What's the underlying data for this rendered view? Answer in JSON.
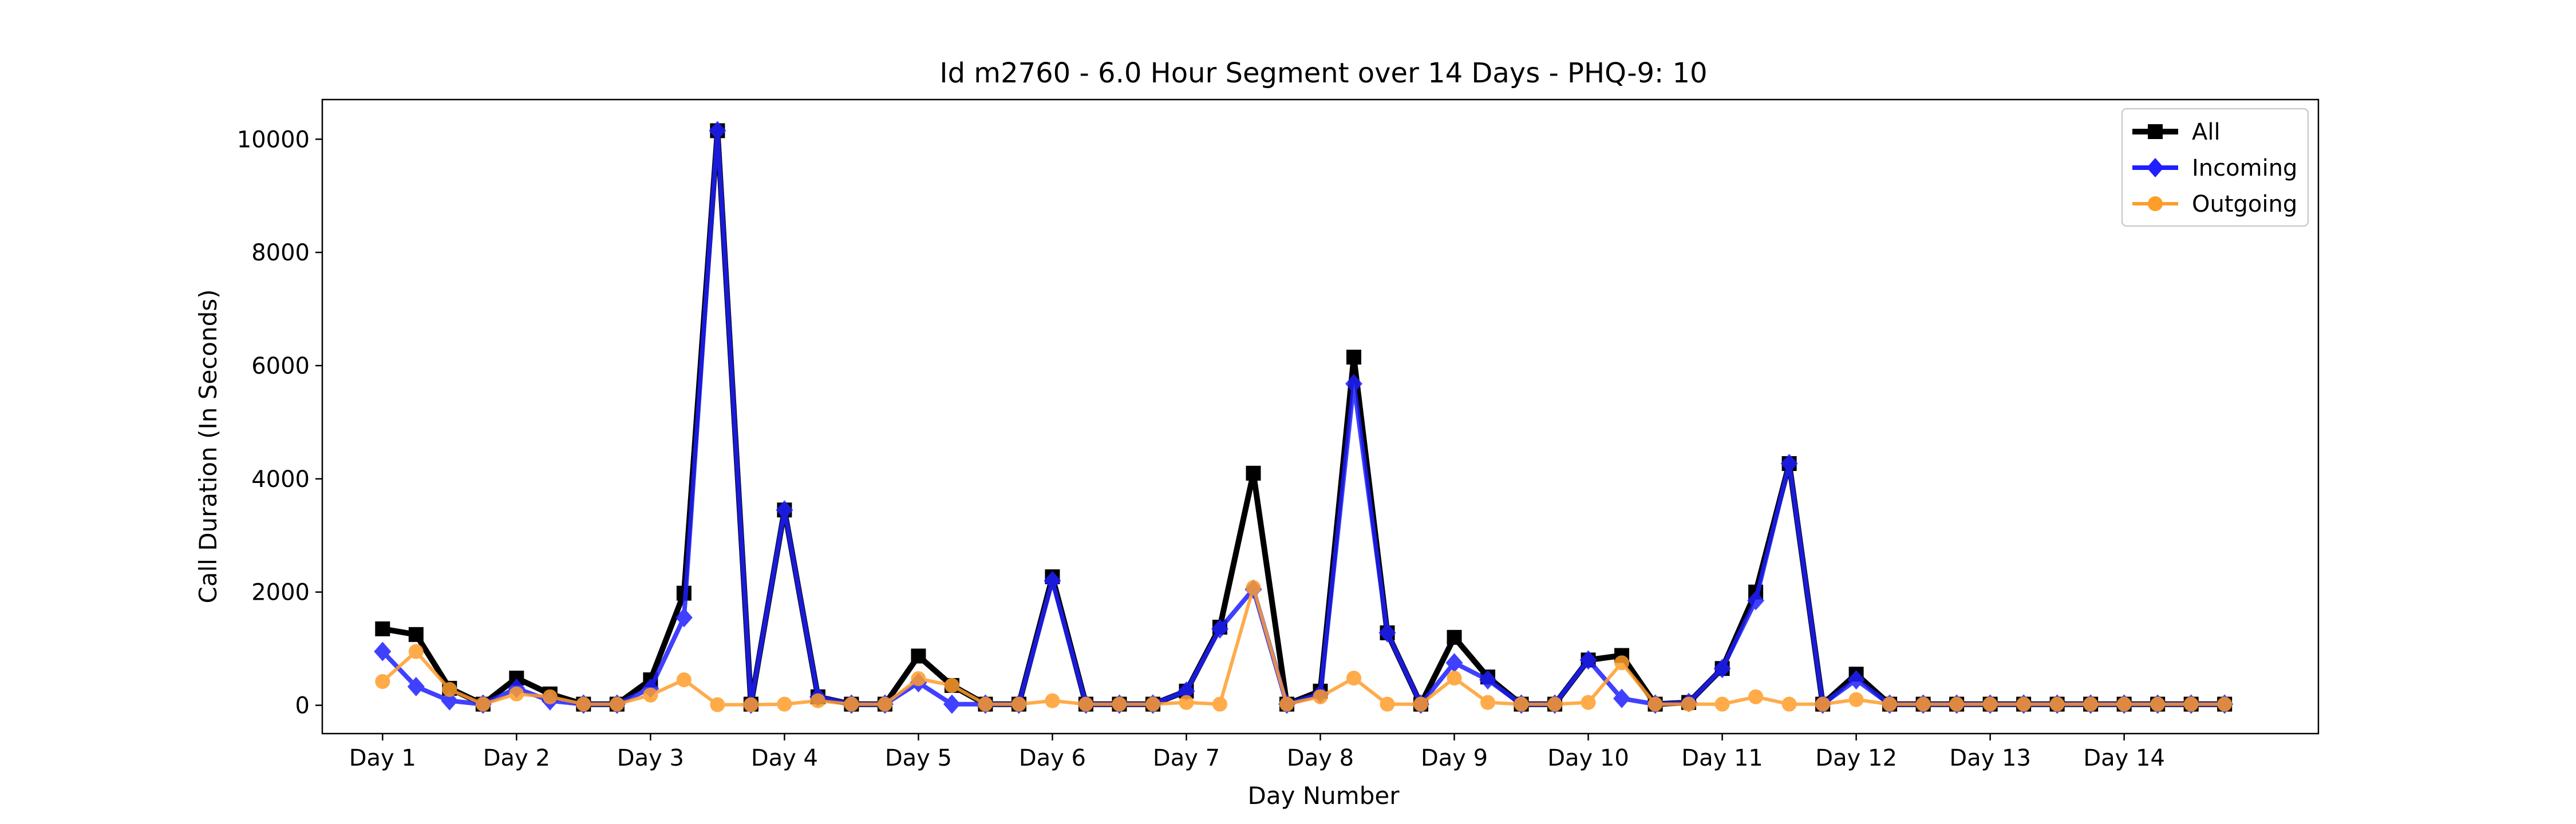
{
  "chart_data": {
    "type": "line",
    "title": "Id m2760 - 6.0 Hour Segment over 14 Days - PHQ-9: 10",
    "xlabel": "Day Number",
    "ylabel": "Call Duration (In Seconds)",
    "x_ticks": [
      "Day 1",
      "Day 2",
      "Day 3",
      "Day 4",
      "Day 5",
      "Day 6",
      "Day 7",
      "Day 8",
      "Day 9",
      "Day 10",
      "Day 11",
      "Day 12",
      "Day 13",
      "Day 14"
    ],
    "y_ticks": [
      0,
      2000,
      4000,
      6000,
      8000,
      10000
    ],
    "ylim": [
      -500,
      10700
    ],
    "xlim": [
      -1.8,
      57.8
    ],
    "legend_position": "top-right",
    "grid": false,
    "x": [
      0,
      1,
      2,
      3,
      4,
      5,
      6,
      7,
      8,
      9,
      10,
      11,
      12,
      13,
      14,
      15,
      16,
      17,
      18,
      19,
      20,
      21,
      22,
      23,
      24,
      25,
      26,
      27,
      28,
      29,
      30,
      31,
      32,
      33,
      34,
      35,
      36,
      37,
      38,
      39,
      40,
      41,
      42,
      43,
      44,
      45,
      46,
      47,
      48,
      49,
      50,
      51,
      52,
      53,
      54,
      55
    ],
    "series": [
      {
        "name": "All",
        "color": "#000000",
        "marker": "square",
        "values": [
          1350,
          1250,
          300,
          20,
          480,
          200,
          20,
          20,
          450,
          1980,
          10150,
          20,
          3450,
          150,
          20,
          20,
          870,
          350,
          20,
          20,
          2270,
          20,
          20,
          20,
          250,
          1380,
          4100,
          20,
          250,
          6150,
          1280,
          20,
          1200,
          500,
          20,
          20,
          800,
          880,
          20,
          50,
          650,
          2000,
          4270,
          20,
          550,
          20,
          20,
          20,
          20,
          20,
          20,
          20,
          20,
          20,
          20,
          20
        ]
      },
      {
        "name": "Incoming",
        "color": "#1f1fff",
        "marker": "diamond",
        "values": [
          950,
          330,
          80,
          20,
          300,
          80,
          20,
          20,
          300,
          1550,
          10150,
          20,
          3450,
          150,
          20,
          20,
          400,
          20,
          20,
          20,
          2200,
          20,
          20,
          20,
          250,
          1350,
          2050,
          20,
          200,
          5680,
          1280,
          20,
          750,
          450,
          20,
          20,
          800,
          120,
          20,
          50,
          650,
          1850,
          4270,
          20,
          450,
          20,
          20,
          20,
          20,
          20,
          20,
          20,
          20,
          20,
          20,
          20
        ]
      },
      {
        "name": "Outgoing",
        "color": "#ff9d2b",
        "marker": "circle",
        "values": [
          420,
          950,
          280,
          20,
          200,
          150,
          20,
          20,
          180,
          450,
          10,
          10,
          20,
          80,
          20,
          20,
          470,
          350,
          20,
          20,
          80,
          20,
          20,
          20,
          50,
          20,
          2080,
          20,
          150,
          480,
          20,
          20,
          480,
          50,
          20,
          20,
          50,
          750,
          20,
          20,
          20,
          150,
          20,
          20,
          100,
          20,
          20,
          20,
          20,
          20,
          20,
          20,
          20,
          20,
          20,
          20
        ]
      }
    ]
  }
}
